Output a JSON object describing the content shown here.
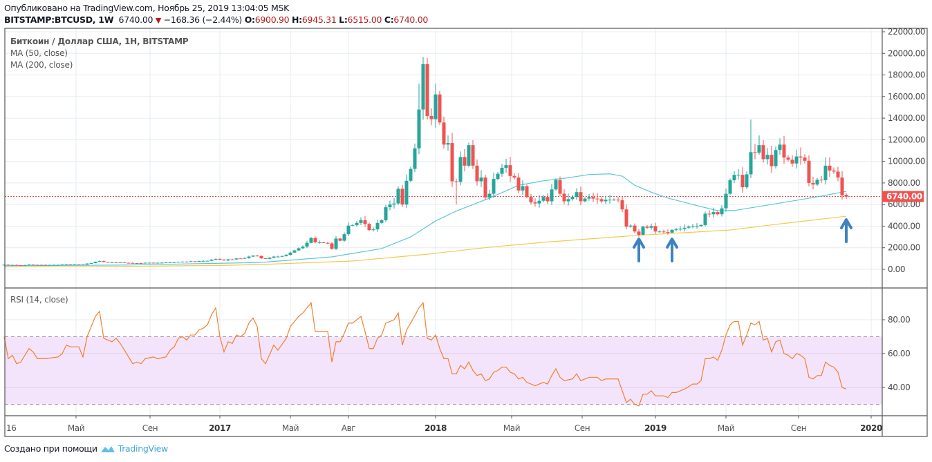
{
  "header": {
    "published": "Опубликовано на TradingView.com, Ноябрь 25, 2019 13:04:05 MSK",
    "symbol": "BITSTAMP:BTCUSD, 1W",
    "last": "6740.00",
    "change": "−168.36 (−2.44%)",
    "o_label": "O:",
    "o": "6900.90",
    "h_label": "H:",
    "h": "6945.31",
    "l_label": "L:",
    "l": "6515.00",
    "c_label": "C:",
    "c": "6740.00"
  },
  "legend": {
    "title": "Биткоин / Доллар США, 1Н, BITSTAMP",
    "ma50": "MA (50, close)",
    "ma200": "MA (200, close)",
    "rsi": "RSI (14, close)"
  },
  "footer": {
    "made_with": "Создано при помощи",
    "brand": "TradingView"
  },
  "colors": {
    "up": "#26a69a",
    "down": "#ef5350",
    "ma50": "#5cc6dc",
    "ma200": "#f2c94c",
    "rsi": "#f0812f",
    "rsi_band": "#f3e4fb",
    "arrow": "#3d82c4",
    "grid": "#e6ecf0"
  },
  "chart_data": [
    {
      "type": "candlestick",
      "title": "BITSTAMP:BTCUSD, 1W",
      "x_unit": "week index from first week of Jan 2016",
      "ylim": [
        0,
        22000
      ],
      "y_ticks": [
        "0.00",
        "2000.00",
        "4000.00",
        "6000.00",
        "8000.00",
        "10000.00",
        "12000.00",
        "14000.00",
        "16000.00",
        "18000.00",
        "20000.00",
        "22000.00"
      ],
      "last_price_label": "6740.00",
      "first_open": 430,
      "last_open": 6900.9,
      "closes": [
        430,
        380,
        410,
        380,
        375,
        400,
        440,
        420,
        410,
        415,
        410,
        415,
        420,
        420,
        450,
        460,
        445,
        455,
        440,
        445,
        530,
        580,
        700,
        760,
        680,
        650,
        660,
        650,
        655,
        600,
        590,
        575,
        575,
        570,
        605,
        610,
        605,
        605,
        615,
        640,
        650,
        655,
        700,
        710,
        705,
        740,
        735,
        765,
        780,
        790,
        900,
        960,
        900,
        820,
        920,
        915,
        1010,
        1000,
        1050,
        1180,
        1270,
        1230,
        1020,
        970,
        1080,
        1180,
        1180,
        1230,
        1340,
        1550,
        1750,
        1950,
        2100,
        2450,
        2900,
        2500,
        2500,
        2450,
        2400,
        1900,
        2850,
        2650,
        3250,
        4050,
        4100,
        4300,
        4550,
        4200,
        3640,
        3700,
        4300,
        4550,
        5750,
        6000,
        6100,
        7460,
        6000,
        8200,
        9300,
        11200,
        14800,
        19000,
        14200,
        13900,
        16200,
        13600,
        11550,
        11700,
        8150,
        8100,
        10400,
        9600,
        11500,
        9600,
        8150,
        8500,
        6650,
        7000,
        8370,
        8850,
        9400,
        9650,
        8650,
        8500,
        7300,
        7700,
        6700,
        6200,
        6100,
        6350,
        6700,
        6300,
        7400,
        8270,
        7000,
        6300,
        6500,
        6700,
        7150,
        6300,
        6550,
        6700,
        6550,
        6500,
        6300,
        6450,
        6450,
        6450,
        6400,
        5550,
        3950,
        4050,
        3500,
        3200,
        3950,
        3850,
        4000,
        3500,
        3500,
        3450,
        3400,
        3650,
        3700,
        3750,
        3850,
        3950,
        4000,
        4000,
        4100,
        5150,
        5100,
        5300,
        5100,
        5650,
        7000,
        8250,
        8750,
        8750,
        7600,
        8800,
        10850,
        10800,
        11500,
        10200,
        10600,
        9550,
        11050,
        11550,
        10350,
        10150,
        9800,
        10450,
        10350,
        10050,
        8000,
        7850,
        8300,
        8250,
        9600,
        9150,
        9050,
        8500,
        6850,
        6740
      ],
      "high_overrides": {
        "101": 19666,
        "100": 17200,
        "104": 17200,
        "180": 13880,
        "182": 12400,
        "198": 10370
      },
      "low_overrides": {
        "109": 6000,
        "116": 6400,
        "203": 6515
      },
      "series": [
        {
          "name": "MA (50, close)",
          "points": [
            [
              0,
              330
            ],
            [
              30,
              400
            ],
            [
              52,
              560
            ],
            [
              62,
              640
            ],
            [
              79,
              1150
            ],
            [
              91,
              1920
            ],
            [
              98,
              3000
            ],
            [
              104,
              4480
            ],
            [
              109,
              5400
            ],
            [
              117,
              6590
            ],
            [
              124,
              7780
            ],
            [
              130,
              8200
            ],
            [
              136,
              8480
            ],
            [
              141,
              8780
            ],
            [
              146,
              8840
            ],
            [
              149,
              8630
            ],
            [
              152,
              7780
            ],
            [
              156,
              7140
            ],
            [
              160,
              6600
            ],
            [
              166,
              6000
            ],
            [
              172,
              5430
            ],
            [
              176,
              5450
            ],
            [
              186,
              6070
            ],
            [
              197,
              6780
            ],
            [
              203,
              7220
            ]
          ]
        },
        {
          "name": "MA (200, close)",
          "points": [
            [
              0,
              220
            ],
            [
              30,
              280
            ],
            [
              52,
              360
            ],
            [
              62,
              450
            ],
            [
              84,
              770
            ],
            [
              102,
              1400
            ],
            [
              117,
              2050
            ],
            [
              130,
              2500
            ],
            [
              152,
              3130
            ],
            [
              175,
              3640
            ],
            [
              186,
              4160
            ],
            [
              203,
              4920
            ]
          ]
        }
      ],
      "annotations": [
        {
          "type": "arrow-up",
          "x": 153
        },
        {
          "type": "arrow-up",
          "x": 161
        },
        {
          "type": "arrow-up",
          "x": 203
        }
      ]
    },
    {
      "type": "line",
      "title": "RSI (14, close)",
      "ylim": [
        25,
        95
      ],
      "y_ticks": [
        "40.00",
        "60.00",
        "80.00"
      ],
      "band": [
        30,
        70
      ],
      "points": [
        [
          0,
          70
        ],
        [
          1,
          57
        ],
        [
          2,
          59
        ],
        [
          3,
          54
        ],
        [
          4,
          55
        ],
        [
          6,
          63
        ],
        [
          7,
          61
        ],
        [
          8,
          57
        ],
        [
          10,
          57
        ],
        [
          13,
          58
        ],
        [
          14,
          60
        ],
        [
          15,
          65
        ],
        [
          16,
          64
        ],
        [
          18,
          64
        ],
        [
          19,
          58
        ],
        [
          20,
          70
        ],
        [
          22,
          82
        ],
        [
          23,
          85
        ],
        [
          24,
          69
        ],
        [
          25,
          68
        ],
        [
          26,
          67
        ],
        [
          27,
          69
        ],
        [
          28,
          66
        ],
        [
          30,
          58
        ],
        [
          31,
          54
        ],
        [
          32,
          55
        ],
        [
          33,
          54
        ],
        [
          34,
          57
        ],
        [
          36,
          58
        ],
        [
          37,
          57
        ],
        [
          39,
          58
        ],
        [
          40,
          62
        ],
        [
          41,
          64
        ],
        [
          42,
          69
        ],
        [
          43,
          70
        ],
        [
          44,
          68
        ],
        [
          45,
          71
        ],
        [
          46,
          71
        ],
        [
          47,
          74
        ],
        [
          48,
          75
        ],
        [
          49,
          77
        ],
        [
          50,
          83
        ],
        [
          51,
          87
        ],
        [
          52,
          70
        ],
        [
          53,
          61
        ],
        [
          54,
          67
        ],
        [
          55,
          66
        ],
        [
          56,
          71
        ],
        [
          57,
          70
        ],
        [
          58,
          72
        ],
        [
          59,
          78
        ],
        [
          60,
          81
        ],
        [
          61,
          76
        ],
        [
          62,
          57
        ],
        [
          63,
          54
        ],
        [
          65,
          65
        ],
        [
          66,
          62
        ],
        [
          68,
          69
        ],
        [
          69,
          76
        ],
        [
          71,
          82
        ],
        [
          72,
          84
        ],
        [
          74,
          90
        ],
        [
          75,
          73
        ],
        [
          78,
          73
        ],
        [
          79,
          55
        ],
        [
          80,
          67
        ],
        [
          81,
          67
        ],
        [
          82,
          72
        ],
        [
          83,
          78
        ],
        [
          84,
          78
        ],
        [
          86,
          82
        ],
        [
          87,
          73
        ],
        [
          88,
          63
        ],
        [
          89,
          63
        ],
        [
          90,
          69
        ],
        [
          91,
          71
        ],
        [
          92,
          78
        ],
        [
          94,
          80
        ],
        [
          95,
          84
        ],
        [
          96,
          65
        ],
        [
          97,
          74
        ],
        [
          98,
          78
        ],
        [
          100,
          87
        ],
        [
          101,
          90
        ],
        [
          102,
          69
        ],
        [
          103,
          68
        ],
        [
          104,
          71
        ],
        [
          105,
          63
        ],
        [
          106,
          57
        ],
        [
          107,
          57
        ],
        [
          108,
          48
        ],
        [
          109,
          48
        ],
        [
          110,
          53
        ],
        [
          111,
          51
        ],
        [
          112,
          55
        ],
        [
          113,
          50
        ],
        [
          114,
          47
        ],
        [
          115,
          48
        ],
        [
          116,
          44
        ],
        [
          117,
          45
        ],
        [
          118,
          49
        ],
        [
          119,
          50
        ],
        [
          120,
          52
        ],
        [
          121,
          52
        ],
        [
          122,
          49
        ],
        [
          123,
          48
        ],
        [
          124,
          45
        ],
        [
          125,
          46
        ],
        [
          126,
          43
        ],
        [
          128,
          41
        ],
        [
          130,
          43
        ],
        [
          131,
          42
        ],
        [
          132,
          47
        ],
        [
          133,
          51
        ],
        [
          134,
          46
        ],
        [
          135,
          44
        ],
        [
          137,
          45
        ],
        [
          138,
          48
        ],
        [
          139,
          44
        ],
        [
          141,
          46
        ],
        [
          143,
          46
        ],
        [
          144,
          44
        ],
        [
          145,
          45
        ],
        [
          148,
          45
        ],
        [
          149,
          38
        ],
        [
          150,
          31
        ],
        [
          151,
          33
        ],
        [
          152,
          30
        ],
        [
          153,
          29
        ],
        [
          154,
          36
        ],
        [
          155,
          36
        ],
        [
          156,
          38
        ],
        [
          157,
          35
        ],
        [
          159,
          35
        ],
        [
          160,
          34
        ],
        [
          161,
          37
        ],
        [
          162,
          37
        ],
        [
          164,
          39
        ],
        [
          166,
          42
        ],
        [
          167,
          42
        ],
        [
          168,
          44
        ],
        [
          169,
          57
        ],
        [
          170,
          57
        ],
        [
          171,
          58
        ],
        [
          172,
          56
        ],
        [
          173,
          62
        ],
        [
          174,
          71
        ],
        [
          175,
          77
        ],
        [
          176,
          79
        ],
        [
          177,
          79
        ],
        [
          178,
          65
        ],
        [
          179,
          71
        ],
        [
          180,
          78
        ],
        [
          181,
          77
        ],
        [
          182,
          79
        ],
        [
          183,
          68
        ],
        [
          184,
          69
        ],
        [
          185,
          61
        ],
        [
          186,
          67
        ],
        [
          187,
          68
        ],
        [
          188,
          60
        ],
        [
          189,
          59
        ],
        [
          190,
          57
        ],
        [
          191,
          60
        ],
        [
          192,
          59
        ],
        [
          193,
          57
        ],
        [
          194,
          46
        ],
        [
          195,
          45
        ],
        [
          196,
          47
        ],
        [
          197,
          47
        ],
        [
          198,
          55
        ],
        [
          199,
          53
        ],
        [
          200,
          52
        ],
        [
          201,
          49
        ],
        [
          202,
          40
        ],
        [
          203,
          39
        ]
      ]
    }
  ],
  "time_axis": [
    {
      "label": "16",
      "bold": false
    },
    {
      "label": "Май",
      "bold": false
    },
    {
      "label": "Сен",
      "bold": false
    },
    {
      "label": "2017",
      "bold": true
    },
    {
      "label": "Май",
      "bold": false
    },
    {
      "label": "Авг",
      "bold": false
    },
    {
      "label": "2018",
      "bold": true
    },
    {
      "label": "Май",
      "bold": false
    },
    {
      "label": "Сен",
      "bold": false
    },
    {
      "label": "2019",
      "bold": true
    },
    {
      "label": "Май",
      "bold": false
    },
    {
      "label": "Сен",
      "bold": false
    },
    {
      "label": "2020",
      "bold": true
    }
  ]
}
